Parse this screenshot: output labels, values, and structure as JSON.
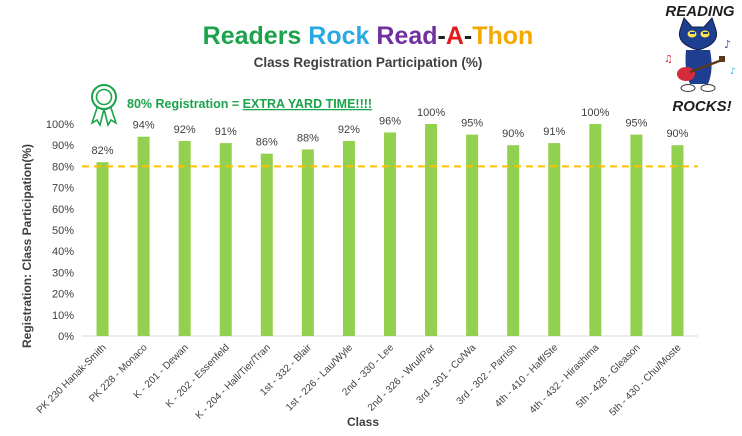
{
  "title_parts": [
    {
      "text": "Readers ",
      "color": "#1aa34a"
    },
    {
      "text": "Rock ",
      "color": "#29a9e1"
    },
    {
      "text": "Read",
      "color": "#7030a0"
    },
    {
      "text": "-",
      "color": "#1f1f1f"
    },
    {
      "text": "A",
      "color": "#e21b1b"
    },
    {
      "text": "-",
      "color": "#1f1f1f"
    },
    {
      "text": "Thon",
      "color": "#f5a800"
    }
  ],
  "logo": {
    "line1": "READING",
    "line2": "ROCKS!",
    "icon": "pete-the-cat-guitar-icon"
  },
  "award": {
    "icon": "ribbon-award-icon",
    "prefix": "80% Registration = ",
    "emphasis": "EXTRA YARD TIME!!!!",
    "color": "#1aa34a"
  },
  "colors": {
    "bar": "#92d050",
    "target_line": "#ffc000",
    "grid": "#d9d9d9",
    "text": "#404040"
  },
  "chart_data": {
    "type": "bar",
    "title": "Readers Rock Read-A-Thon",
    "subtitle": "Class Registration Participation (%)",
    "xlabel": "Class",
    "ylabel": "Registration: Class Participation(%)",
    "ylim": [
      0,
      100
    ],
    "ytick_labels": [
      "0%",
      "10%",
      "20%",
      "30%",
      "40%",
      "50%",
      "60%",
      "70%",
      "80%",
      "90%",
      "100%"
    ],
    "grid": false,
    "target_value": 80,
    "categories": [
      "PK 230 Hanak-Smith",
      "PK 228 - Monaco",
      "K - 201 - Dewan",
      "K - 202 - Essenfeld",
      "K - 204 - Hall/Tier/Tran",
      "1st - 332 - Blair",
      "1st - 226 - Lau/Wyle",
      "2nd - 330 - Lee",
      "2nd - 326 - Wrul/Par",
      "3rd - 301 - Co/Wa",
      "3rd - 302 - Parrish",
      "4th - 410 - Haff/Ste",
      "4th - 432 - Hirashima",
      "5th - 428 - Gleason",
      "5th - 430 - Chu/Moste"
    ],
    "values": [
      82,
      94,
      92,
      91,
      86,
      88,
      92,
      96,
      100,
      95,
      90,
      91,
      100,
      95,
      90
    ],
    "data_labels": [
      "82%",
      "94%",
      "92%",
      "91%",
      "86%",
      "88%",
      "92%",
      "96%",
      "100%",
      "95%",
      "90%",
      "91%",
      "100%",
      "95%",
      "90%"
    ]
  }
}
